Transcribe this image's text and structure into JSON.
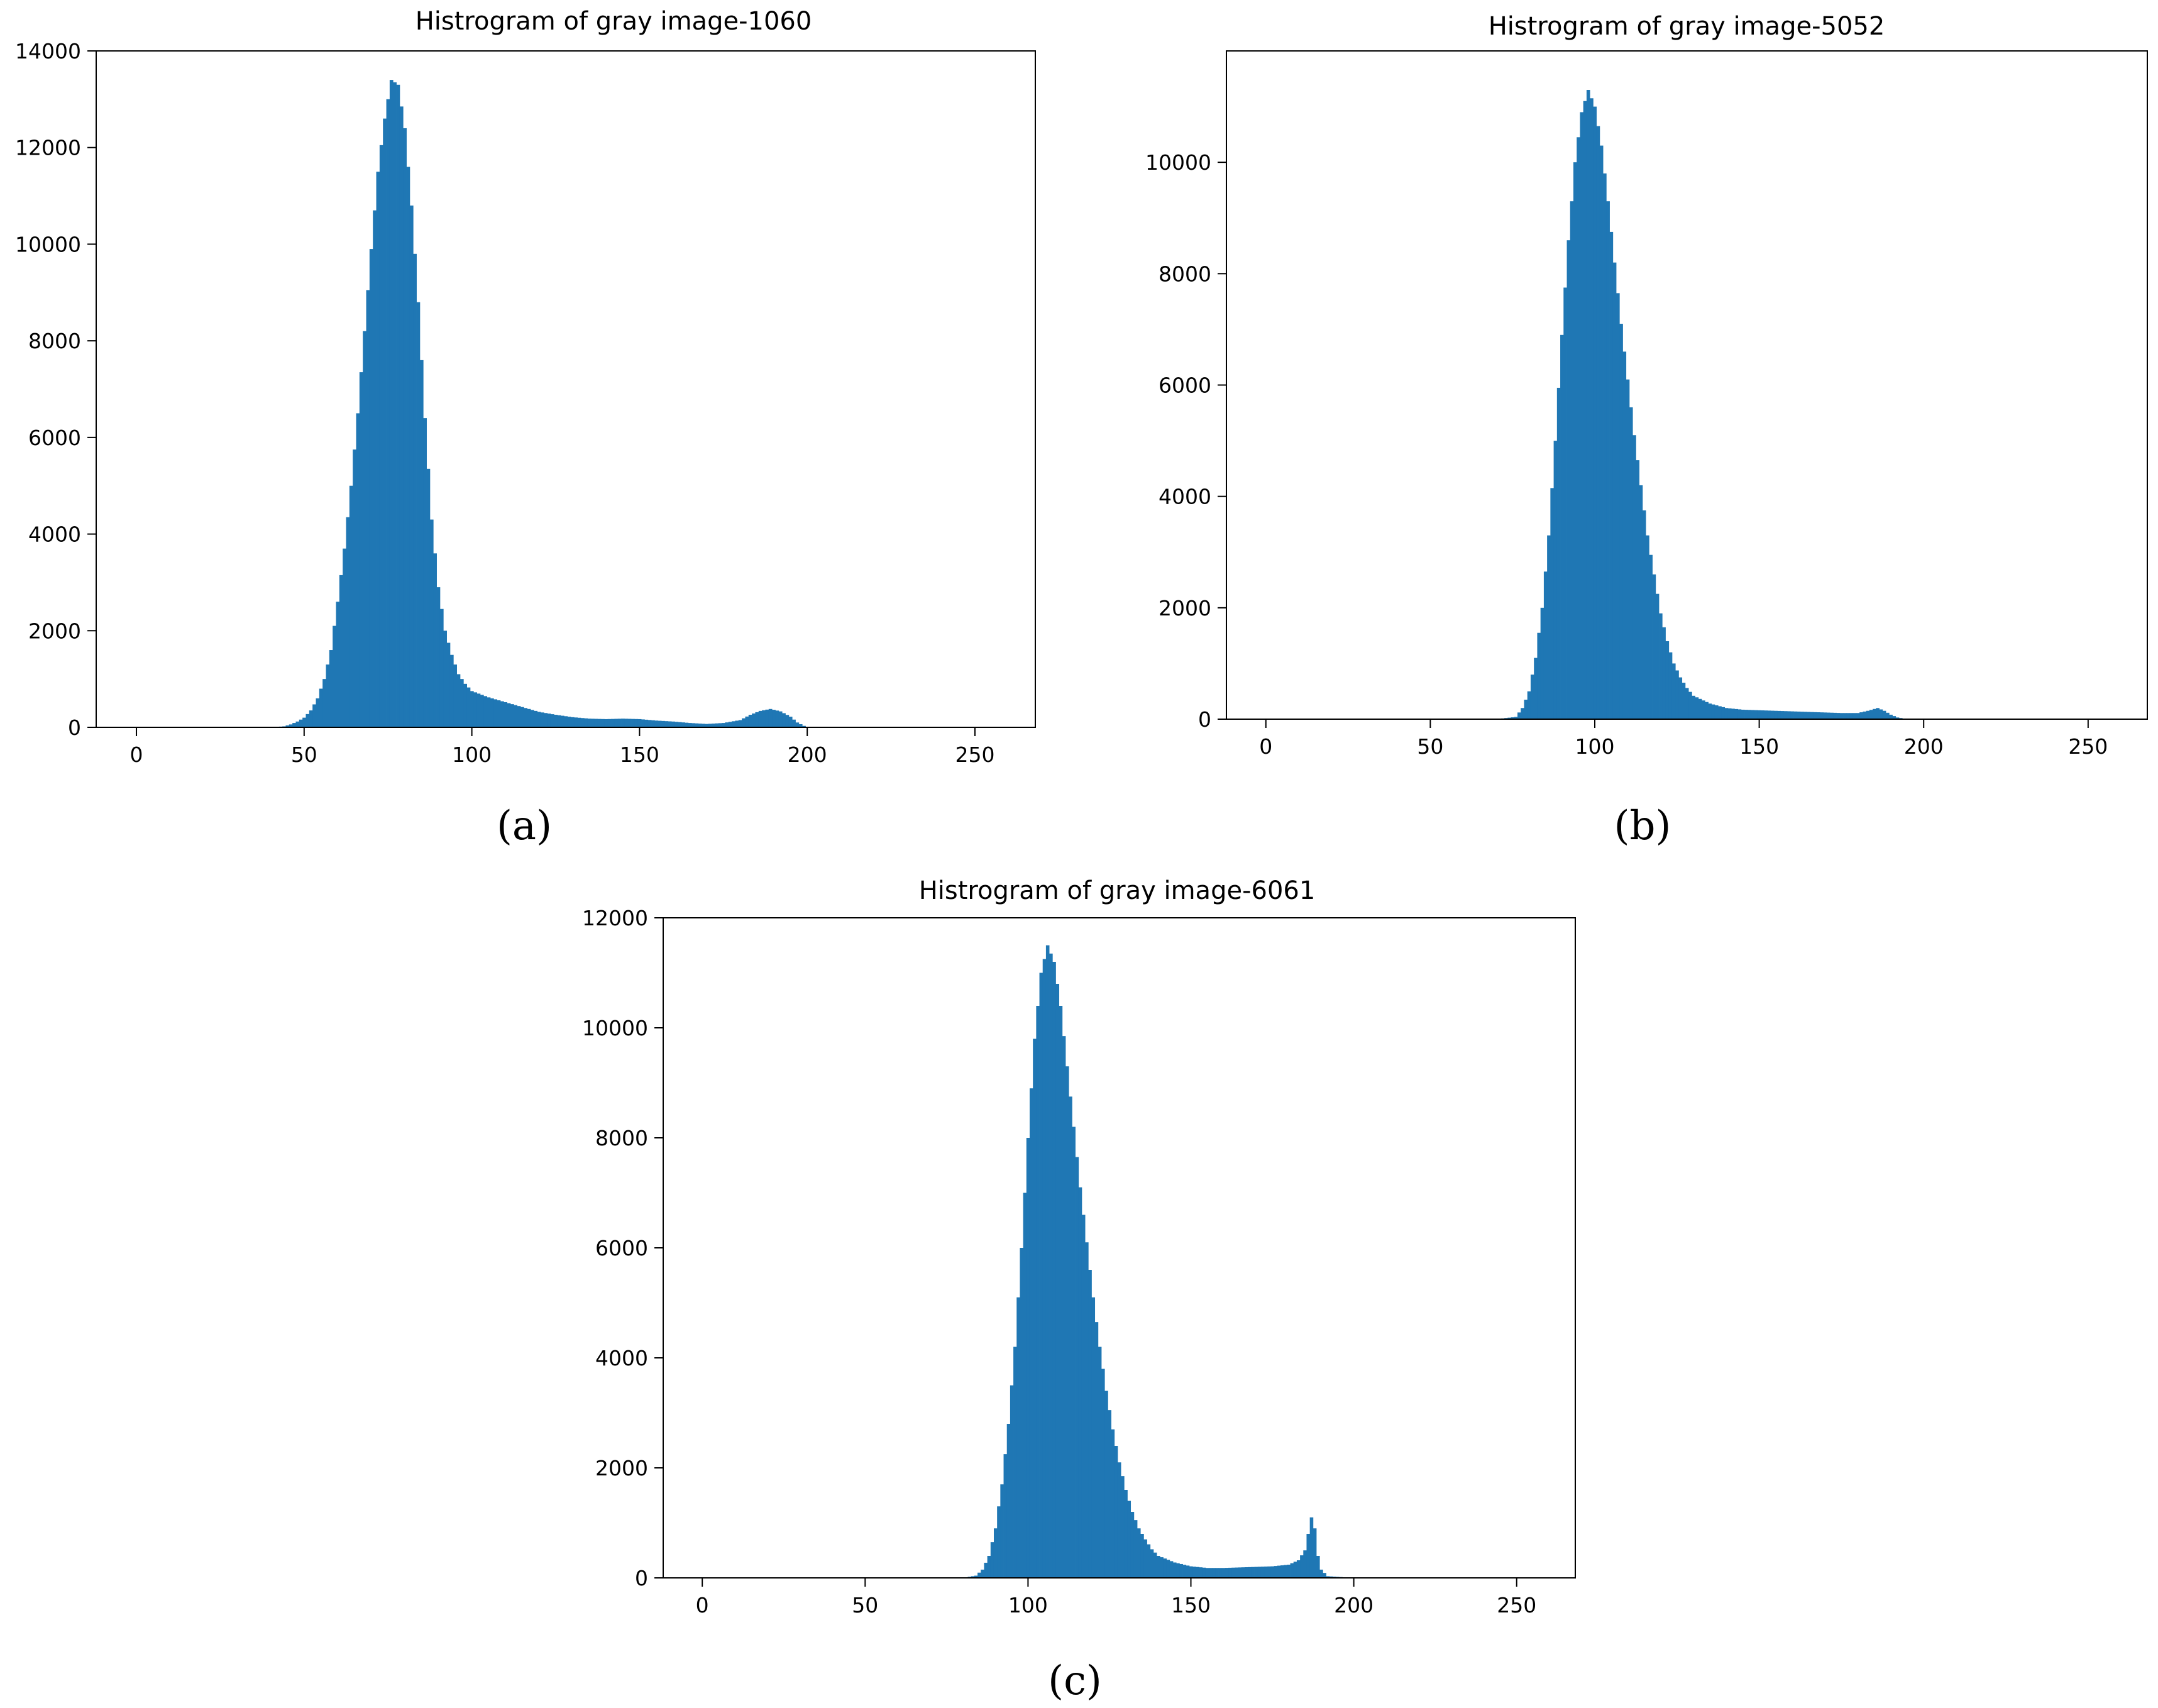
{
  "colors": {
    "bar": "#1f77b4",
    "axis": "#000000",
    "background": "#ffffff"
  },
  "panels": [
    {
      "label": "(a)"
    },
    {
      "label": "(b)"
    },
    {
      "label": "(c)"
    }
  ],
  "chart_data": [
    {
      "type": "bar",
      "title": "Histrogram of gray image-1060",
      "xlabel": "",
      "ylabel": "",
      "xlim": [
        -12,
        268
      ],
      "ylim": [
        0,
        14000
      ],
      "xticks": [
        0,
        50,
        100,
        150,
        200,
        250
      ],
      "yticks": [
        0,
        2000,
        4000,
        6000,
        8000,
        10000,
        12000,
        14000
      ],
      "grid": false,
      "x": [
        0,
        10,
        20,
        30,
        40,
        44,
        46,
        48,
        50,
        52,
        54,
        56,
        58,
        60,
        62,
        64,
        66,
        68,
        70,
        72,
        74,
        76,
        78,
        80,
        82,
        84,
        86,
        88,
        90,
        92,
        94,
        96,
        98,
        100,
        105,
        110,
        115,
        120,
        125,
        130,
        135,
        140,
        145,
        150,
        155,
        160,
        165,
        170,
        175,
        180,
        183,
        186,
        189,
        192,
        195,
        197,
        199,
        200,
        210,
        220,
        230,
        240,
        250,
        255
      ],
      "y": [
        0,
        0,
        0,
        0,
        0,
        20,
        60,
        120,
        200,
        350,
        600,
        1000,
        1600,
        2600,
        3700,
        5000,
        6500,
        8200,
        9900,
        11500,
        12600,
        13400,
        13300,
        12400,
        10800,
        8800,
        6400,
        4300,
        2900,
        2000,
        1500,
        1100,
        900,
        750,
        620,
        520,
        420,
        320,
        260,
        210,
        180,
        170,
        180,
        170,
        140,
        120,
        90,
        70,
        90,
        150,
        260,
        340,
        380,
        330,
        220,
        100,
        30,
        0,
        0,
        0,
        0,
        0,
        0,
        0
      ]
    },
    {
      "type": "bar",
      "title": "Histrogram of gray image-5052",
      "xlabel": "",
      "ylabel": "",
      "xlim": [
        -12,
        268
      ],
      "ylim": [
        0,
        12000
      ],
      "xticks": [
        0,
        50,
        100,
        150,
        200,
        250
      ],
      "yticks": [
        0,
        2000,
        4000,
        6000,
        8000,
        10000
      ],
      "grid": false,
      "x": [
        0,
        10,
        20,
        30,
        40,
        50,
        60,
        70,
        76,
        78,
        80,
        82,
        84,
        86,
        88,
        90,
        92,
        94,
        96,
        98,
        100,
        102,
        104,
        106,
        108,
        110,
        112,
        114,
        116,
        118,
        120,
        122,
        124,
        126,
        128,
        130,
        135,
        140,
        145,
        150,
        155,
        160,
        165,
        170,
        175,
        180,
        183,
        186,
        188,
        190,
        192,
        195,
        200,
        210,
        220,
        230,
        240,
        250,
        255
      ],
      "y": [
        0,
        0,
        0,
        0,
        0,
        0,
        0,
        0,
        40,
        200,
        500,
        1100,
        2000,
        3300,
        5000,
        6900,
        8600,
        10000,
        10900,
        11300,
        11000,
        10300,
        9300,
        8200,
        7100,
        6100,
        5100,
        4200,
        3300,
        2600,
        1900,
        1400,
        1000,
        750,
        560,
        420,
        280,
        200,
        170,
        160,
        150,
        140,
        130,
        120,
        110,
        110,
        150,
        200,
        150,
        80,
        30,
        0,
        0,
        0,
        0,
        0,
        0,
        0,
        0
      ]
    },
    {
      "type": "bar",
      "title": "Histrogram of gray image-6061",
      "xlabel": "",
      "ylabel": "",
      "xlim": [
        -12,
        268
      ],
      "ylim": [
        0,
        12000
      ],
      "xticks": [
        0,
        50,
        100,
        150,
        200,
        250
      ],
      "yticks": [
        0,
        2000,
        4000,
        6000,
        8000,
        10000,
        12000
      ],
      "grid": false,
      "x": [
        0,
        10,
        20,
        30,
        40,
        50,
        60,
        70,
        80,
        84,
        86,
        88,
        90,
        92,
        94,
        96,
        98,
        100,
        102,
        104,
        106,
        108,
        110,
        112,
        114,
        116,
        118,
        120,
        122,
        124,
        126,
        128,
        130,
        132,
        134,
        136,
        138,
        140,
        145,
        150,
        155,
        160,
        165,
        170,
        175,
        180,
        183,
        185,
        186,
        187,
        188,
        189,
        190,
        192,
        200,
        210,
        220,
        230,
        240,
        250,
        255
      ],
      "y": [
        0,
        0,
        0,
        0,
        0,
        0,
        0,
        0,
        0,
        40,
        150,
        400,
        900,
        1700,
        2800,
        4200,
        6000,
        8000,
        9800,
        11000,
        11500,
        11200,
        10400,
        9300,
        8200,
        7100,
        6100,
        5100,
        4200,
        3400,
        2700,
        2100,
        1600,
        1200,
        900,
        700,
        520,
        400,
        280,
        210,
        180,
        180,
        190,
        200,
        210,
        240,
        320,
        500,
        800,
        1100,
        900,
        400,
        150,
        30,
        0,
        0,
        0,
        0,
        0,
        0,
        0
      ]
    }
  ]
}
